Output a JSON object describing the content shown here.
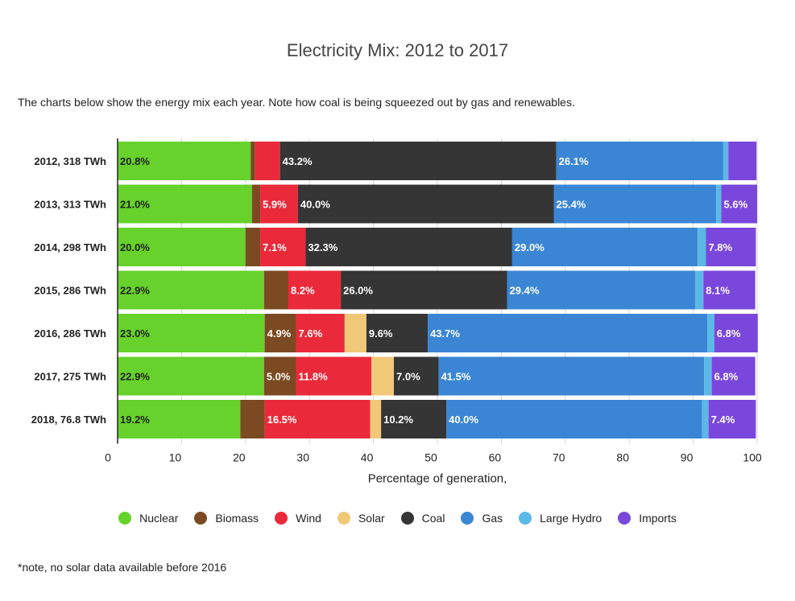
{
  "title": "Electricity Mix: 2012 to 2017",
  "subtitle": "The charts below show the energy mix each year. Note how coal is being squeezed out by gas and renewables.",
  "footnote": "*note, no solar data available before 2016",
  "chart_data": {
    "type": "bar",
    "orientation": "horizontal",
    "stacked": true,
    "title": "Electricity Mix: 2012 to 2017",
    "xlabel": "Percentage of generation,",
    "ylabel": "",
    "xlim": [
      0,
      100
    ],
    "xticks": [
      "0",
      "10",
      "20",
      "30",
      "40",
      "50",
      "60",
      "70",
      "80",
      "90",
      "100"
    ],
    "categories": [
      "2012, 318 TWh",
      "2013, 313 TWh",
      "2014, 298 TWh",
      "2015, 286 TWh",
      "2016, 286 TWh",
      "2017, 275 TWh",
      "2018, 76.8 TWh"
    ],
    "legend_position": "bottom",
    "series": [
      {
        "name": "Nuclear",
        "color": "#66d22b",
        "values": [
          20.8,
          21.0,
          20.0,
          22.9,
          23.0,
          22.9,
          19.2
        ],
        "labels": [
          "20.8%",
          "21.0%",
          "20.0%",
          "22.9%",
          "23.0%",
          "22.9%",
          "19.2%"
        ],
        "label_color": "#222222"
      },
      {
        "name": "Biomass",
        "color": "#7b4a22",
        "values": [
          0.7,
          1.3,
          2.3,
          3.8,
          4.9,
          5.0,
          3.8
        ],
        "labels": [
          "",
          "",
          "",
          "",
          "4.9%",
          "5.0%",
          ""
        ],
        "label_color": "#ffffff"
      },
      {
        "name": "Wind",
        "color": "#ea2a3a",
        "values": [
          3.9,
          5.9,
          7.1,
          8.2,
          7.6,
          11.8,
          16.5
        ],
        "labels": [
          "",
          "5.9%",
          "7.1%",
          "8.2%",
          "7.6%",
          "11.8%",
          "16.5%"
        ],
        "label_color": "#ffffff"
      },
      {
        "name": "Solar",
        "color": "#f0c878",
        "values": [
          0,
          0,
          0,
          0,
          3.4,
          3.5,
          1.7
        ],
        "labels": [
          "",
          "",
          "",
          "",
          "",
          "",
          ""
        ],
        "label_color": "#222222"
      },
      {
        "name": "Coal",
        "color": "#353535",
        "values": [
          43.2,
          40.0,
          32.3,
          26.0,
          9.6,
          7.0,
          10.2
        ],
        "labels": [
          "43.2%",
          "40.0%",
          "32.3%",
          "26.0%",
          "9.6%",
          "7.0%",
          "10.2%"
        ],
        "label_color": "#ffffff"
      },
      {
        "name": "Gas",
        "color": "#3a86d4",
        "values": [
          26.1,
          25.4,
          29.0,
          29.4,
          43.7,
          41.5,
          40.0
        ],
        "labels": [
          "26.1%",
          "25.4%",
          "29.0%",
          "29.4%",
          "43.7%",
          "41.5%",
          "40.0%"
        ],
        "label_color": "#ffffff"
      },
      {
        "name": "Large Hydro",
        "color": "#5cb8e6",
        "values": [
          0.8,
          0.8,
          1.3,
          1.3,
          1.1,
          1.2,
          1.0
        ],
        "labels": [
          "",
          "",
          "",
          "",
          "",
          "",
          ""
        ],
        "label_color": "#222222"
      },
      {
        "name": "Imports",
        "color": "#7a47dc",
        "values": [
          4.4,
          5.6,
          7.8,
          8.1,
          6.8,
          6.8,
          7.4
        ],
        "labels": [
          "",
          "5.6%",
          "7.8%",
          "8.1%",
          "6.8%",
          "6.8%",
          "7.4%"
        ],
        "label_color": "#ffffff"
      }
    ]
  }
}
